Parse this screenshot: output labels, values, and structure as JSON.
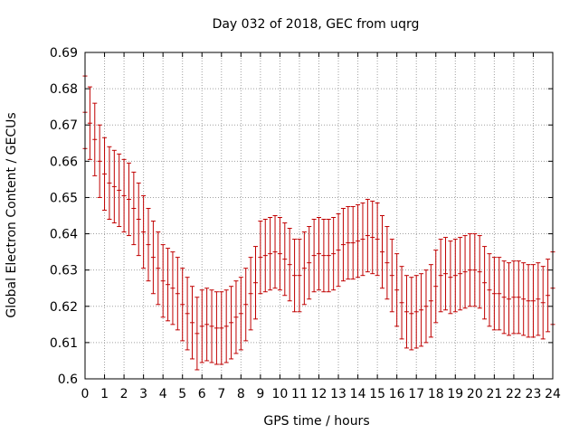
{
  "chart_data": {
    "type": "line",
    "title": "Day 032 of 2018, GEC from uqrg",
    "xlabel": "GPS time / hours",
    "ylabel": "Global Electron Content / GECUs",
    "xlim": [
      0,
      24
    ],
    "ylim": [
      0.6,
      0.69
    ],
    "grid": true,
    "legend": "none",
    "error_bars": true,
    "colors": {
      "series": "#c00000",
      "grid": "#a0a0a0",
      "axis": "#000000"
    },
    "x_ticks": [
      "0",
      "1",
      "2",
      "3",
      "4",
      "5",
      "6",
      "7",
      "8",
      "9",
      "10",
      "11",
      "12",
      "13",
      "14",
      "15",
      "16",
      "17",
      "18",
      "19",
      "20",
      "21",
      "22",
      "23",
      "24"
    ],
    "y_ticks": [
      "0.6",
      "0.61",
      "0.62",
      "0.63",
      "0.64",
      "0.65",
      "0.66",
      "0.67",
      "0.68",
      "0.69"
    ],
    "x": [
      0,
      0.25,
      0.5,
      0.75,
      1,
      1.25,
      1.5,
      1.75,
      2,
      2.25,
      2.5,
      2.75,
      3,
      3.25,
      3.5,
      3.75,
      4,
      4.25,
      4.5,
      4.75,
      5,
      5.25,
      5.5,
      5.75,
      6,
      6.25,
      6.5,
      6.75,
      7,
      7.25,
      7.5,
      7.75,
      8,
      8.25,
      8.5,
      8.75,
      9,
      9.25,
      9.5,
      9.75,
      10,
      10.25,
      10.5,
      10.75,
      11,
      11.25,
      11.5,
      11.75,
      12,
      12.25,
      12.5,
      12.75,
      13,
      13.25,
      13.5,
      13.75,
      14,
      14.25,
      14.5,
      14.75,
      15,
      15.25,
      15.5,
      15.75,
      16,
      16.25,
      16.5,
      16.75,
      17,
      17.25,
      17.5,
      17.75,
      18,
      18.25,
      18.5,
      18.75,
      19,
      19.25,
      19.5,
      19.75,
      20,
      20.25,
      20.5,
      20.75,
      21,
      21.25,
      21.5,
      21.75,
      22,
      22.25,
      22.5,
      22.75,
      23,
      23.25,
      23.5,
      23.75,
      24
    ],
    "y": [
      0.6735,
      0.6705,
      0.666,
      0.66,
      0.6565,
      0.654,
      0.653,
      0.652,
      0.6505,
      0.6495,
      0.647,
      0.644,
      0.6405,
      0.637,
      0.6335,
      0.6305,
      0.627,
      0.626,
      0.625,
      0.6235,
      0.6205,
      0.618,
      0.6155,
      0.6125,
      0.6145,
      0.615,
      0.6145,
      0.614,
      0.614,
      0.6145,
      0.6155,
      0.617,
      0.618,
      0.6205,
      0.6235,
      0.6265,
      0.6335,
      0.634,
      0.6345,
      0.635,
      0.6345,
      0.633,
      0.6315,
      0.6285,
      0.6285,
      0.6305,
      0.632,
      0.634,
      0.6345,
      0.634,
      0.634,
      0.6345,
      0.6355,
      0.637,
      0.6375,
      0.6375,
      0.638,
      0.6385,
      0.6395,
      0.639,
      0.6385,
      0.635,
      0.632,
      0.6285,
      0.6245,
      0.621,
      0.6185,
      0.618,
      0.6185,
      0.619,
      0.62,
      0.6215,
      0.6255,
      0.6285,
      0.629,
      0.628,
      0.6285,
      0.629,
      0.6295,
      0.63,
      0.63,
      0.6295,
      0.6265,
      0.6245,
      0.6235,
      0.6235,
      0.6225,
      0.622,
      0.6225,
      0.6225,
      0.622,
      0.6215,
      0.6215,
      0.622,
      0.621,
      0.623,
      0.625
    ],
    "error": [
      0.01,
      0.01,
      0.01,
      0.01,
      0.01,
      0.01,
      0.01,
      0.01,
      0.01,
      0.01,
      0.01,
      0.01,
      0.01,
      0.01,
      0.01,
      0.01,
      0.01,
      0.01,
      0.01,
      0.01,
      0.01,
      0.01,
      0.01,
      0.01,
      0.01,
      0.01,
      0.01,
      0.01,
      0.01,
      0.01,
      0.01,
      0.01,
      0.01,
      0.01,
      0.01,
      0.01,
      0.01,
      0.01,
      0.01,
      0.01,
      0.01,
      0.01,
      0.01,
      0.01,
      0.01,
      0.01,
      0.01,
      0.01,
      0.01,
      0.01,
      0.01,
      0.01,
      0.01,
      0.01,
      0.01,
      0.01,
      0.01,
      0.01,
      0.01,
      0.01,
      0.01,
      0.01,
      0.01,
      0.01,
      0.01,
      0.01,
      0.01,
      0.01,
      0.01,
      0.01,
      0.01,
      0.01,
      0.01,
      0.01,
      0.01,
      0.01,
      0.01,
      0.01,
      0.01,
      0.01,
      0.01,
      0.01,
      0.01,
      0.01,
      0.01,
      0.01,
      0.01,
      0.01,
      0.01,
      0.01,
      0.01,
      0.01,
      0.01,
      0.01,
      0.01,
      0.01,
      0.01
    ]
  }
}
